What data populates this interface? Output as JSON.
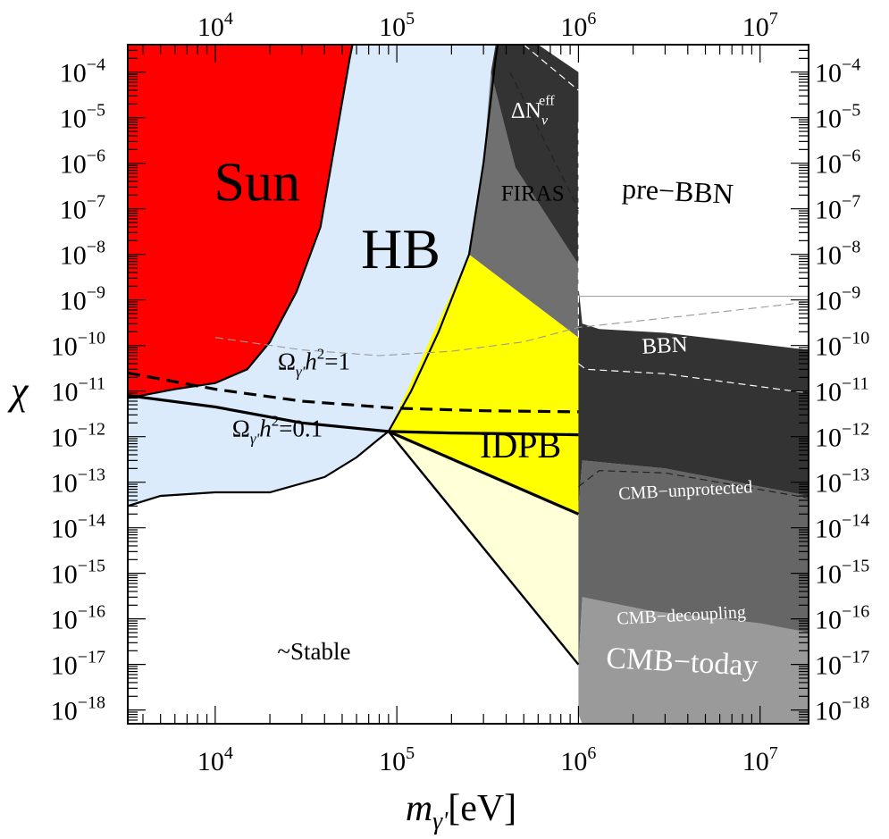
{
  "chart_data": {
    "type": "area",
    "x_scale": "log",
    "y_scale": "log",
    "xlim": [
      3300,
      18500000
    ],
    "ylim": [
      5e-19,
      0.0004
    ],
    "xlabel": "m",
    "xlabel_sub": "γ'",
    "xlabel_unit": "[eV]",
    "ylabel": "χ",
    "x_ticks": [
      {
        "value": 10000,
        "base": "10",
        "exp": "4"
      },
      {
        "value": 100000,
        "base": "10",
        "exp": "5"
      },
      {
        "value": 1000000,
        "base": "10",
        "exp": "6"
      },
      {
        "value": 10000000,
        "base": "10",
        "exp": "7"
      }
    ],
    "y_ticks": [
      {
        "value": 0.0001,
        "base": "10",
        "exp": "−4"
      },
      {
        "value": 1e-05,
        "base": "10",
        "exp": "−5"
      },
      {
        "value": 1e-06,
        "base": "10",
        "exp": "−6"
      },
      {
        "value": 1e-07,
        "base": "10",
        "exp": "−7"
      },
      {
        "value": 1e-08,
        "base": "10",
        "exp": "−8"
      },
      {
        "value": 1e-09,
        "base": "10",
        "exp": "−9"
      },
      {
        "value": 1e-10,
        "base": "10",
        "exp": "−10"
      },
      {
        "value": 1e-11,
        "base": "10",
        "exp": "−11"
      },
      {
        "value": 1e-12,
        "base": "10",
        "exp": "−12"
      },
      {
        "value": 1e-13,
        "base": "10",
        "exp": "−13"
      },
      {
        "value": 1e-14,
        "base": "10",
        "exp": "−14"
      },
      {
        "value": 1e-15,
        "base": "10",
        "exp": "−15"
      },
      {
        "value": 1e-16,
        "base": "10",
        "exp": "−16"
      },
      {
        "value": 1e-17,
        "base": "10",
        "exp": "−17"
      },
      {
        "value": 1e-18,
        "base": "10",
        "exp": "−18"
      }
    ],
    "regions": [
      {
        "name": "HB",
        "color": "#dcebfc",
        "points": [
          [
            3300,
            3e-14
          ],
          [
            5000,
            5e-14
          ],
          [
            10000,
            6e-14
          ],
          [
            20000,
            6e-14
          ],
          [
            40000,
            1.3e-13
          ],
          [
            60000,
            3.5e-13
          ],
          [
            80000,
            9e-13
          ],
          [
            90000,
            1.3e-12
          ],
          [
            120000,
            1e-11
          ],
          [
            170000,
            2e-10
          ],
          [
            250000,
            1e-08
          ],
          [
            300000,
            1e-06
          ],
          [
            350000,
            0.0002
          ],
          [
            360000,
            0.0004
          ],
          [
            3300,
            0.0004
          ]
        ]
      },
      {
        "name": "Sun",
        "color": "#ff0000",
        "points": [
          [
            3300,
            7e-12
          ],
          [
            6000,
            1.1e-11
          ],
          [
            10000,
            1.5e-11
          ],
          [
            15000,
            3e-11
          ],
          [
            20000,
            1.2e-10
          ],
          [
            28000,
            1.5e-09
          ],
          [
            38000,
            4e-08
          ],
          [
            45000,
            2e-06
          ],
          [
            55000,
            0.0002
          ],
          [
            57000,
            0.0004
          ],
          [
            3300,
            0.0004
          ]
        ]
      },
      {
        "name": "IDPB-light",
        "color": "#ffffd8",
        "points": [
          [
            90000,
            1.3e-12
          ],
          [
            1000000,
            2e-14
          ],
          [
            1000000,
            1e-17
          ]
        ]
      },
      {
        "name": "IDPB",
        "color": "#ffff00",
        "points": [
          [
            90000,
            1.3e-12
          ],
          [
            250000,
            1e-08
          ],
          [
            1000000,
            1.5e-10
          ],
          [
            1000000,
            2e-14
          ]
        ]
      },
      {
        "name": "FIRAS",
        "color": "#707070",
        "points": [
          [
            250000,
            1e-08
          ],
          [
            300000,
            1e-06
          ],
          [
            330000,
            0.0001
          ],
          [
            450000,
            8e-07
          ],
          [
            1000000,
            6e-09
          ],
          [
            1000000,
            1.5e-10
          ]
        ]
      },
      {
        "name": "ΔN_eff",
        "color": "#333333",
        "points": [
          [
            330000,
            0.0001
          ],
          [
            350000,
            0.0004
          ],
          [
            600000,
            0.0004
          ],
          [
            1000000,
            0.0001
          ],
          [
            1000000,
            6e-09
          ],
          [
            450000,
            8e-07
          ]
        ]
      },
      {
        "name": "CMB-today",
        "color": "#9a9a9a",
        "points": [
          [
            1000000,
            1e-17
          ],
          [
            1050000,
            3e-16
          ],
          [
            2500000,
            1.5e-16
          ],
          [
            10000000,
            8e-17
          ],
          [
            18500000,
            5e-17
          ],
          [
            18500000,
            5e-19
          ],
          [
            1050000,
            5e-19
          ],
          [
            1000000,
            8e-19
          ]
        ]
      },
      {
        "name": "CMB-decoupling",
        "color": "#666666",
        "points": [
          [
            1000000,
            3e-14
          ],
          [
            1050000,
            3e-13
          ],
          [
            3000000,
            2e-13
          ],
          [
            18500000,
            5e-14
          ],
          [
            18500000,
            5e-17
          ],
          [
            10000000,
            8e-17
          ],
          [
            2500000,
            1.5e-16
          ],
          [
            1050000,
            3e-16
          ],
          [
            1000000,
            1e-17
          ]
        ]
      },
      {
        "name": "BBN",
        "color": "#333333",
        "points": [
          [
            1000000,
            2e-09
          ],
          [
            1050000,
            3e-10
          ],
          [
            1300000,
            2.3e-10
          ],
          [
            3000000,
            1.9e-10
          ],
          [
            18500000,
            8e-11
          ],
          [
            18500000,
            5e-14
          ],
          [
            3000000,
            2e-13
          ],
          [
            1050000,
            3e-13
          ],
          [
            1000000,
            3e-14
          ]
        ]
      }
    ],
    "lines": [
      {
        "name": "Ω_γ' h² = 0.1",
        "style": "solid",
        "width": 3.2,
        "points": [
          [
            3300,
            8e-12
          ],
          [
            10000,
            4.5e-12
          ],
          [
            30000,
            2e-12
          ],
          [
            90000,
            1.3e-12
          ],
          [
            200000,
            1.2e-12
          ],
          [
            500000,
            1.15e-12
          ],
          [
            1000000,
            1.1e-12
          ]
        ]
      },
      {
        "name": "Ω_γ' h² = 1",
        "style": "dashed",
        "width": 3.2,
        "points": [
          [
            3300,
            2.5e-11
          ],
          [
            10000,
            1.1e-11
          ],
          [
            30000,
            6e-12
          ],
          [
            100000,
            4.2e-12
          ],
          [
            300000,
            3.7e-12
          ],
          [
            1000000,
            3.5e-12
          ]
        ]
      },
      {
        "name": "IDPB lower",
        "style": "solid",
        "width": 3.2,
        "points": [
          [
            90000,
            1.3e-12
          ],
          [
            1000000,
            2e-14
          ]
        ]
      },
      {
        "name": "IDPB bottom",
        "style": "solid",
        "width": 2.4,
        "points": [
          [
            90000,
            1.3e-12
          ],
          [
            1000000,
            1e-17
          ]
        ]
      },
      {
        "name": "thin-dashed-gray",
        "style": "thin-dashed",
        "color": "#999999",
        "points": [
          [
            10000,
            1.5e-10
          ],
          [
            30000,
            8e-11
          ],
          [
            80000,
            6e-11
          ],
          [
            200000,
            7.5e-11
          ],
          [
            500000,
            1.2e-10
          ],
          [
            1000000,
            2.5e-10
          ],
          [
            3000000,
            4e-10
          ],
          [
            18500000,
            9e-10
          ]
        ]
      },
      {
        "name": "thin-gray-boundary",
        "style": "thin",
        "color": "#999999",
        "points": [
          [
            1000000,
            1.2e-09
          ],
          [
            18500000,
            1.2e-09
          ]
        ]
      },
      {
        "name": "white-dashed-BBN",
        "style": "white-dashed",
        "points": [
          [
            1000000,
            4e-11
          ],
          [
            1100000,
            3e-11
          ],
          [
            3000000,
            2.4e-11
          ],
          [
            18500000,
            9e-12
          ]
        ]
      },
      {
        "name": "white-dashed-vertical",
        "style": "white-dashed",
        "points": [
          [
            1000000,
            1.5e-10
          ],
          [
            1000000,
            8e-06
          ]
        ]
      },
      {
        "name": "white-dashed-top",
        "style": "white-dashed",
        "points": [
          [
            500000,
            0.0004
          ],
          [
            1000000,
            4e-05
          ]
        ]
      },
      {
        "name": "dark-dashed-FIRAS",
        "style": "dark-dashed",
        "points": [
          [
            420000,
            0.0001
          ],
          [
            1000000,
            1e-07
          ]
        ]
      },
      {
        "name": "dark-dashed-CMB",
        "style": "dark-dashed",
        "points": [
          [
            1000000,
            8e-14
          ],
          [
            1300000,
            1.8e-13
          ],
          [
            3000000,
            1.6e-13
          ],
          [
            18500000,
            4.5e-14
          ]
        ]
      }
    ],
    "annotations": [
      {
        "id": "sun",
        "text": "Sun",
        "x": 17000,
        "y": 1.5e-07,
        "color": "#000000",
        "size": 62
      },
      {
        "id": "hb",
        "text": "HB",
        "x": 105000,
        "y": 5e-09,
        "color": "#000000",
        "size": 64
      },
      {
        "id": "idpb",
        "text": "IDPB",
        "x": 480000,
        "y": 3.5e-13,
        "color": "#000000",
        "size": 40
      },
      {
        "id": "firas",
        "text": "FIRAS",
        "x": 560000,
        "y": 1.5e-07,
        "color": "#000000",
        "size": 25
      },
      {
        "id": "prebbn",
        "text": "pre−BBN",
        "x": 3500000,
        "y": 1.5e-07,
        "color": "#000000",
        "size": 32,
        "rotate": 3
      },
      {
        "id": "bbn",
        "text": "BBN",
        "x": 3000000,
        "y": 7e-11,
        "color": "#ffffff",
        "size": 25,
        "rotate": -3
      },
      {
        "id": "cmbu",
        "text": "CMB−unprotected",
        "x": 3900000,
        "y": 5e-14,
        "color": "#ffffff",
        "size": 20,
        "rotate": -3
      },
      {
        "id": "cmbd",
        "text": "CMB−decoupling",
        "x": 3700000,
        "y": 9e-17,
        "color": "#ffffff",
        "size": 20,
        "rotate": -3
      },
      {
        "id": "cmbt",
        "text": "CMB−today",
        "x": 3700000,
        "y": 7e-18,
        "color": "#ffffff",
        "size": 34,
        "rotate": 3
      },
      {
        "id": "stable",
        "text": "~Stable",
        "x": 35000,
        "y": 1.3e-17,
        "color": "#000000",
        "size": 27
      },
      {
        "id": "dneff",
        "text": "ΔN",
        "sub": "ν",
        "sup": "eff",
        "x": 560000,
        "y": 1e-05,
        "color": "#ffffff",
        "size": 25
      },
      {
        "id": "omega1",
        "text": "Ω",
        "sub": "γ'",
        "mid": "h",
        "sup": "2",
        "tail": "=1",
        "x": 35000,
        "y": 3e-11,
        "color": "#000000",
        "size": 27
      },
      {
        "id": "omega01",
        "text": "Ω",
        "sub": "γ'",
        "mid": "h",
        "sup": "2",
        "tail": "=0.1",
        "x": 22000,
        "y": 1e-12,
        "color": "#000000",
        "size": 27
      }
    ]
  }
}
